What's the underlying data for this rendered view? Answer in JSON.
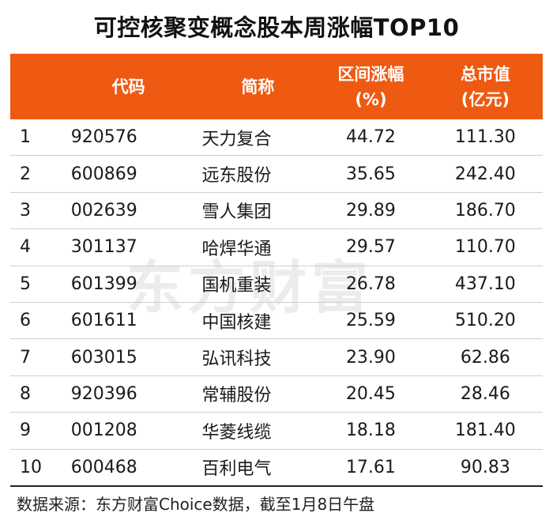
{
  "title": "可控核聚变概念股本周涨幅TOP10",
  "watermark": "东方财富",
  "chart_data": {
    "type": "table",
    "title": "可控核聚变概念股本周涨幅TOP10",
    "columns": [
      {
        "key": "idx",
        "label": ""
      },
      {
        "key": "code",
        "label": "代码"
      },
      {
        "key": "name",
        "label": "简称"
      },
      {
        "key": "chg",
        "label": "区间涨幅",
        "label2": "(%)"
      },
      {
        "key": "cap",
        "label": "总市值",
        "label2": "(亿元)"
      }
    ],
    "rows": [
      {
        "idx": "1",
        "code": "920576",
        "name": "天力复合",
        "chg": "44.72",
        "cap": "111.30"
      },
      {
        "idx": "2",
        "code": "600869",
        "name": "远东股份",
        "chg": "35.65",
        "cap": "242.40"
      },
      {
        "idx": "3",
        "code": "002639",
        "name": "雪人集团",
        "chg": "29.89",
        "cap": "186.70"
      },
      {
        "idx": "4",
        "code": "301137",
        "name": "哈焊华通",
        "chg": "29.57",
        "cap": "110.70"
      },
      {
        "idx": "5",
        "code": "601399",
        "name": "国机重装",
        "chg": "26.78",
        "cap": "437.10"
      },
      {
        "idx": "6",
        "code": "601611",
        "name": "中国核建",
        "chg": "25.59",
        "cap": "510.20"
      },
      {
        "idx": "7",
        "code": "603015",
        "name": "弘讯科技",
        "chg": "23.90",
        "cap": "62.86"
      },
      {
        "idx": "8",
        "code": "920396",
        "name": "常辅股份",
        "chg": "20.45",
        "cap": "28.46"
      },
      {
        "idx": "9",
        "code": "001208",
        "name": "华菱线缆",
        "chg": "18.18",
        "cap": "181.40"
      },
      {
        "idx": "10",
        "code": "600468",
        "name": "百利电气",
        "chg": "17.61",
        "cap": "90.83"
      }
    ]
  },
  "source": "数据来源：东方财富Choice数据，截至1月8日午盘",
  "colors": {
    "header_bg": "#ee5a12",
    "header_text": "#ffffff"
  }
}
